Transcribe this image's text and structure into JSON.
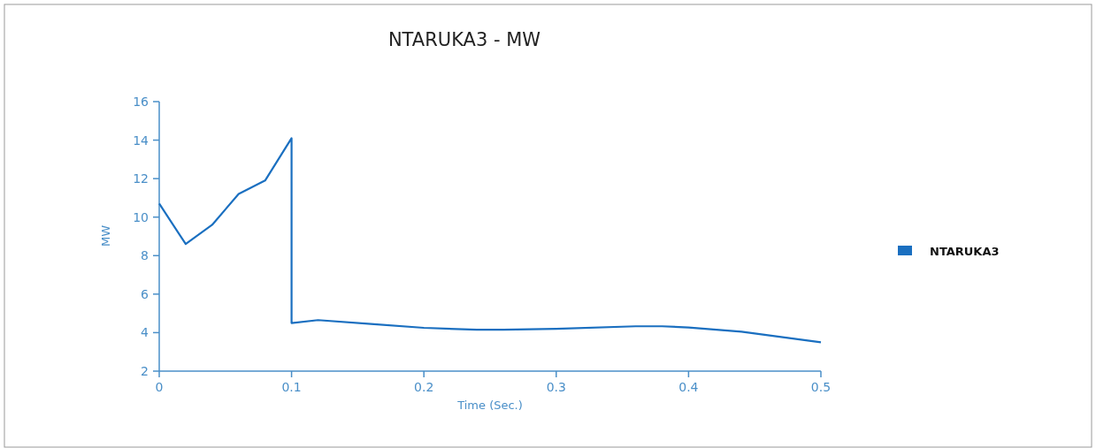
{
  "chart_data": {
    "type": "line",
    "title": "NTARUKA3 - MW",
    "xlabel": "Time (Sec.)",
    "ylabel": "MW",
    "xlim": [
      0,
      0.5
    ],
    "xticks": [
      0,
      0.1,
      0.2,
      0.3,
      0.4,
      0.5
    ],
    "ylim": [
      2,
      16
    ],
    "yticks": [
      2,
      4,
      6,
      8,
      10,
      12,
      14,
      16
    ],
    "grid": false,
    "legend": "right",
    "marker": "none",
    "line_style": "solid",
    "series": [
      {
        "name": "NTARUKA3",
        "color": "#1a6fc0",
        "x": [
          0,
          0.02,
          0.04,
          0.06,
          0.08,
          0.1,
          0.1,
          0.12,
          0.16,
          0.2,
          0.24,
          0.26,
          0.3,
          0.36,
          0.38,
          0.4,
          0.44,
          0.5
        ],
        "values": [
          10.7,
          8.6,
          9.6,
          11.2,
          11.9,
          14.1,
          4.5,
          4.65,
          4.45,
          4.25,
          4.15,
          4.15,
          4.2,
          4.33,
          4.33,
          4.27,
          4.05,
          3.5
        ]
      }
    ]
  }
}
